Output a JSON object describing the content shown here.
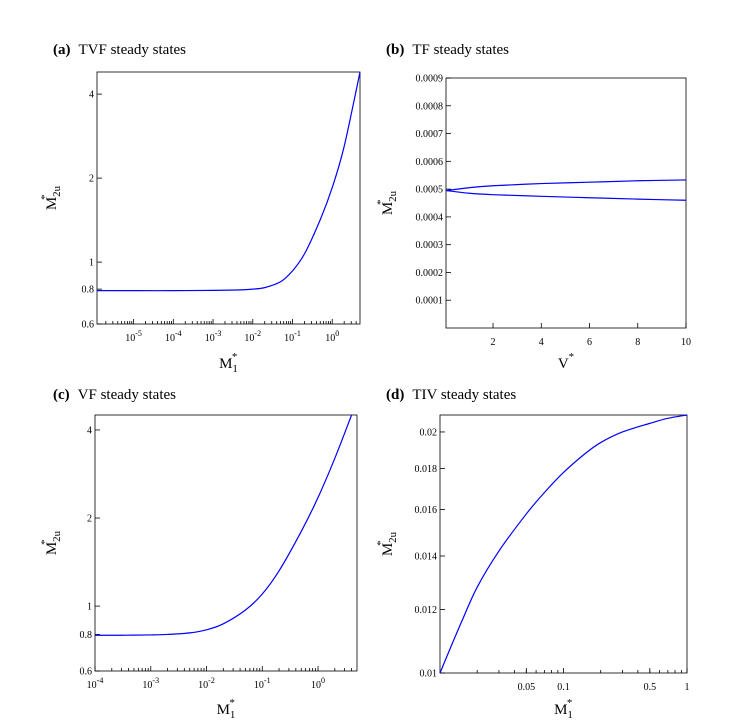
{
  "chart_data": [
    {
      "type": "line",
      "panel_label": "(a)",
      "title": "TVF steady states",
      "xlabel": "M",
      "xlabel_sub": "1",
      "xlabel_sup": "*",
      "ylabel": "M",
      "ylabel_sub": "2u",
      "ylabel_sup": "*",
      "xscale": "log",
      "yscale": "log",
      "xlim": [
        1.2e-06,
        5
      ],
      "ylim": [
        0.6,
        4.8
      ],
      "x_ticks": [
        {
          "value": 1e-05,
          "base": "10",
          "exp": "-5"
        },
        {
          "value": 0.0001,
          "base": "10",
          "exp": "-4"
        },
        {
          "value": 0.001,
          "base": "10",
          "exp": "-3"
        },
        {
          "value": 0.01,
          "base": "10",
          "exp": "-2"
        },
        {
          "value": 0.1,
          "base": "10",
          "exp": "-1"
        },
        {
          "value": 1,
          "base": "10",
          "exp": "0"
        }
      ],
      "y_ticks": [
        {
          "value": 0.6,
          "label": "0.6"
        },
        {
          "value": 0.8,
          "label": "0.8"
        },
        {
          "value": 1,
          "label": "1"
        },
        {
          "value": 2,
          "label": "2"
        },
        {
          "value": 4,
          "label": "4"
        }
      ],
      "series": [
        {
          "color": "#0000ff",
          "x": [
            1.2e-06,
            1e-05,
            0.0001,
            0.001,
            0.005,
            0.01,
            0.02,
            0.05,
            0.1,
            0.2,
            0.5,
            1,
            2,
            5
          ],
          "y": [
            0.79,
            0.79,
            0.79,
            0.792,
            0.795,
            0.8,
            0.81,
            0.85,
            0.93,
            1.07,
            1.42,
            1.85,
            2.6,
            4.8
          ]
        }
      ]
    },
    {
      "type": "line",
      "panel_label": "(b)",
      "title": "TF steady states",
      "xlabel": "V",
      "xlabel_sub": "",
      "xlabel_sup": "*",
      "ylabel": "M",
      "ylabel_sub": "2u",
      "ylabel_sup": "*",
      "xscale": "linear",
      "yscale": "linear",
      "xlim": [
        0.05,
        10
      ],
      "ylim": [
        0,
        0.0009
      ],
      "x_ticks": [
        {
          "value": 2,
          "label": "2"
        },
        {
          "value": 4,
          "label": "4"
        },
        {
          "value": 6,
          "label": "6"
        },
        {
          "value": 8,
          "label": "8"
        },
        {
          "value": 10,
          "label": "10"
        }
      ],
      "y_ticks": [
        {
          "value": 0.0001,
          "label": "0.0001"
        },
        {
          "value": 0.0002,
          "label": "0.0002"
        },
        {
          "value": 0.0003,
          "label": "0.0003"
        },
        {
          "value": 0.0004,
          "label": "0.0004"
        },
        {
          "value": 0.0005,
          "label": "0.0005"
        },
        {
          "value": 0.0006,
          "label": "0.0006"
        },
        {
          "value": 0.0007,
          "label": "0.0007"
        },
        {
          "value": 0.0008,
          "label": "0.0008"
        },
        {
          "value": 0.0009,
          "label": "0.0009"
        }
      ],
      "series": [
        {
          "color": "#0000ff",
          "x": [
            0.05,
            1,
            2,
            4,
            6,
            8,
            10
          ],
          "y": [
            0.000495,
            0.000505,
            0.000512,
            0.00052,
            0.000525,
            0.00053,
            0.000533
          ]
        },
        {
          "color": "#0000ff",
          "x": [
            0.05,
            1,
            2,
            4,
            6,
            8,
            10
          ],
          "y": [
            0.000495,
            0.000485,
            0.00048,
            0.000474,
            0.000469,
            0.000464,
            0.00046
          ]
        }
      ]
    },
    {
      "type": "line",
      "panel_label": "(c)",
      "title": "VF steady states",
      "xlabel": "M",
      "xlabel_sub": "1",
      "xlabel_sup": "*",
      "ylabel": "M",
      "ylabel_sub": "2u",
      "ylabel_sup": "*",
      "xscale": "log",
      "yscale": "log",
      "xlim": [
        0.0001,
        5
      ],
      "ylim": [
        0.6,
        4.5
      ],
      "x_ticks": [
        {
          "value": 0.0001,
          "base": "10",
          "exp": "-4"
        },
        {
          "value": 0.001,
          "base": "10",
          "exp": "-3"
        },
        {
          "value": 0.01,
          "base": "10",
          "exp": "-2"
        },
        {
          "value": 0.1,
          "base": "10",
          "exp": "-1"
        },
        {
          "value": 1,
          "base": "10",
          "exp": "0"
        }
      ],
      "y_ticks": [
        {
          "value": 0.6,
          "label": "0.6"
        },
        {
          "value": 0.8,
          "label": "0.8"
        },
        {
          "value": 1,
          "label": "1"
        },
        {
          "value": 2,
          "label": "2"
        },
        {
          "value": 4,
          "label": "4"
        }
      ],
      "series": [
        {
          "color": "#0000ff",
          "x": [
            0.0001,
            0.0003,
            0.001,
            0.002,
            0.005,
            0.01,
            0.02,
            0.05,
            0.1,
            0.2,
            0.5,
            1,
            2,
            4
          ],
          "y": [
            0.795,
            0.795,
            0.797,
            0.8,
            0.81,
            0.83,
            0.87,
            0.97,
            1.1,
            1.32,
            1.8,
            2.35,
            3.2,
            4.5
          ]
        }
      ]
    },
    {
      "type": "line",
      "panel_label": "(d)",
      "title": "TIV steady states",
      "xlabel": "M",
      "xlabel_sub": "1",
      "xlabel_sup": "*",
      "ylabel": "M",
      "ylabel_sub": "2u",
      "ylabel_sup": "*",
      "xscale": "log",
      "yscale": "log",
      "xlim": [
        0.01,
        1
      ],
      "ylim": [
        0.01,
        0.021
      ],
      "x_ticks": [
        {
          "value": 0.05,
          "label": "0.05"
        },
        {
          "value": 0.1,
          "label": "0.1"
        },
        {
          "value": 0.5,
          "label": "0.5"
        },
        {
          "value": 1,
          "label": "1"
        }
      ],
      "y_ticks": [
        {
          "value": 0.01,
          "label": "0.01"
        },
        {
          "value": 0.012,
          "label": "0.012"
        },
        {
          "value": 0.014,
          "label": "0.014"
        },
        {
          "value": 0.016,
          "label": "0.016"
        },
        {
          "value": 0.018,
          "label": "0.018"
        },
        {
          "value": 0.02,
          "label": "0.02"
        }
      ],
      "series": [
        {
          "color": "#0000ff",
          "x": [
            0.01,
            0.012,
            0.015,
            0.02,
            0.03,
            0.05,
            0.07,
            0.1,
            0.15,
            0.2,
            0.3,
            0.5,
            0.7,
            1
          ],
          "y": [
            0.01,
            0.0107,
            0.0116,
            0.0128,
            0.0142,
            0.0158,
            0.0168,
            0.0178,
            0.0188,
            0.0194,
            0.02,
            0.0205,
            0.0208,
            0.021
          ]
        }
      ]
    }
  ]
}
